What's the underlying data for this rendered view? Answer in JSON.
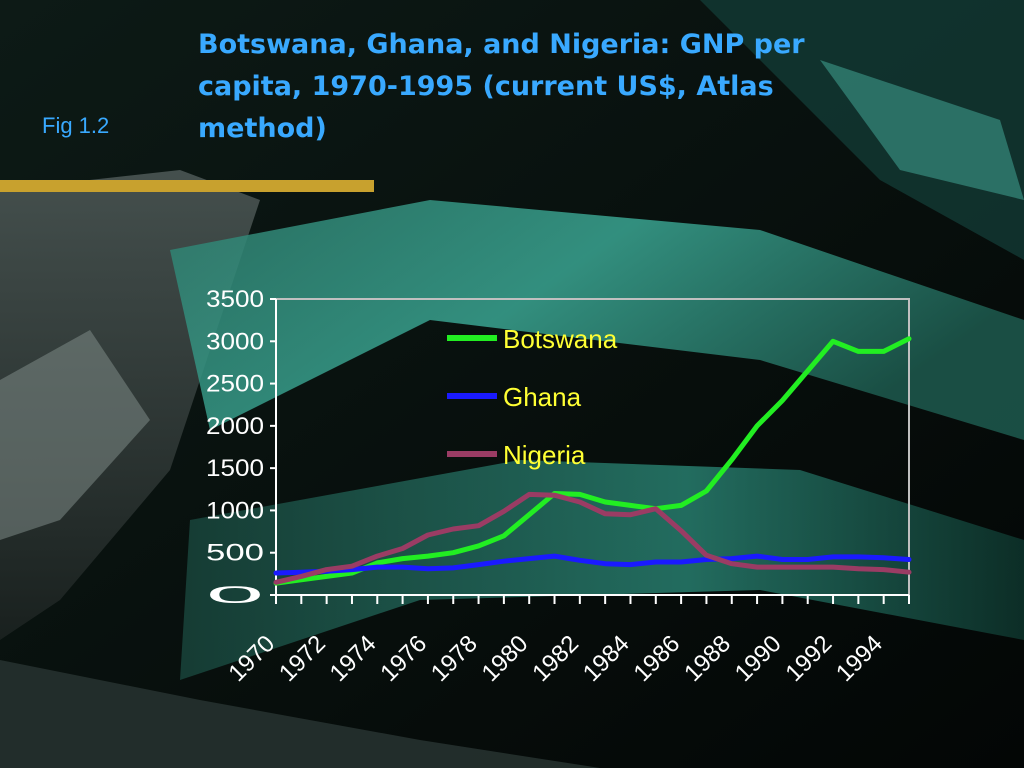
{
  "slide": {
    "fig_label": "Fig 1.2",
    "title": "Botswana, Ghana, and Nigeria: GNP per capita, 1970-1995 (current US$, Atlas method)",
    "accent_color": "#39a9ff",
    "rule_color": "#c8a12e"
  },
  "chart_data": {
    "type": "line",
    "title": "",
    "xlabel": "",
    "ylabel": "",
    "ylim": [
      0,
      3500
    ],
    "yticks": [
      0,
      500,
      1000,
      1500,
      2000,
      2500,
      3000,
      3500
    ],
    "x": [
      1970,
      1971,
      1972,
      1973,
      1974,
      1975,
      1976,
      1977,
      1978,
      1979,
      1980,
      1981,
      1982,
      1983,
      1984,
      1985,
      1986,
      1987,
      1988,
      1989,
      1990,
      1991,
      1992,
      1993,
      1994,
      1995
    ],
    "xtick_labels": [
      "1970",
      "1972",
      "1974",
      "1976",
      "1978",
      "1980",
      "1982",
      "1984",
      "1986",
      "1988",
      "1990",
      "1992",
      "1994"
    ],
    "legend_position": "top-center",
    "grid": false,
    "series": [
      {
        "name": "Botswana",
        "color": "#22ee22",
        "values": [
          140,
          180,
          220,
          260,
          380,
          430,
          460,
          500,
          580,
          700,
          950,
          1200,
          1190,
          1100,
          1060,
          1020,
          1060,
          1230,
          1600,
          2000,
          2300,
          2650,
          3000,
          2880,
          2880,
          3030
        ]
      },
      {
        "name": "Ghana",
        "color": "#1a1aff",
        "values": [
          260,
          270,
          280,
          300,
          330,
          330,
          310,
          320,
          360,
          400,
          430,
          460,
          410,
          370,
          360,
          390,
          390,
          420,
          430,
          460,
          420,
          420,
          450,
          450,
          440,
          420
        ]
      },
      {
        "name": "Nigeria",
        "color": "#9a3c64",
        "values": [
          150,
          220,
          300,
          340,
          460,
          550,
          710,
          780,
          820,
          990,
          1190,
          1180,
          1100,
          960,
          950,
          1020,
          760,
          470,
          370,
          330,
          330,
          330,
          330,
          310,
          300,
          270
        ]
      }
    ]
  }
}
